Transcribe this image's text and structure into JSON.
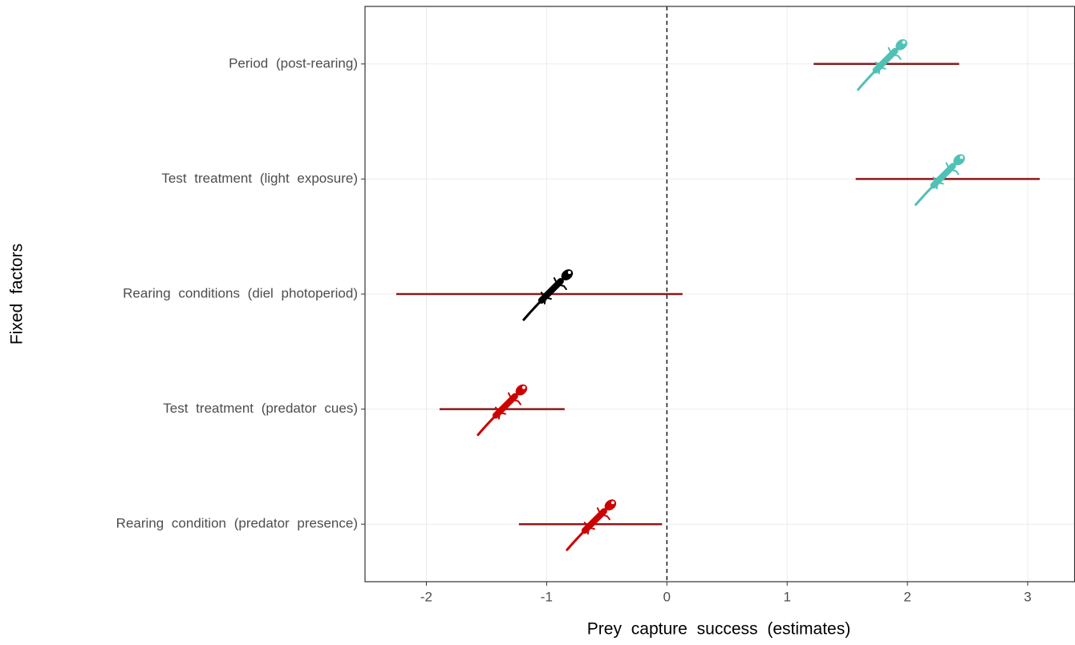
{
  "chart_data": {
    "type": "forest",
    "x_label": "Prey capture success (estimates)",
    "y_label": "Fixed factors",
    "categories": [
      "Period (post-rearing)",
      "Test treatment (light exposure)",
      "Rearing conditions (diel photoperiod)",
      "Test treatment (predator cues)",
      "Rearing condition (predator presence)"
    ],
    "values": [
      1.79,
      2.27,
      -0.99,
      -1.37,
      -0.63
    ],
    "lower": [
      1.22,
      1.57,
      -2.25,
      -1.89,
      -1.23
    ],
    "upper": [
      2.43,
      3.1,
      0.13,
      -0.85,
      -0.04
    ],
    "colors": [
      "#4fc1b5",
      "#4fc1b5",
      "#000000",
      "#cc0000",
      "#cc0000"
    ],
    "errorbar_color": "#8b1a1a",
    "xlim": [
      -2.51,
      3.39
    ],
    "xticks": [
      -2,
      -1,
      0,
      1,
      2,
      3
    ],
    "reference_line": 0,
    "grid": true
  }
}
